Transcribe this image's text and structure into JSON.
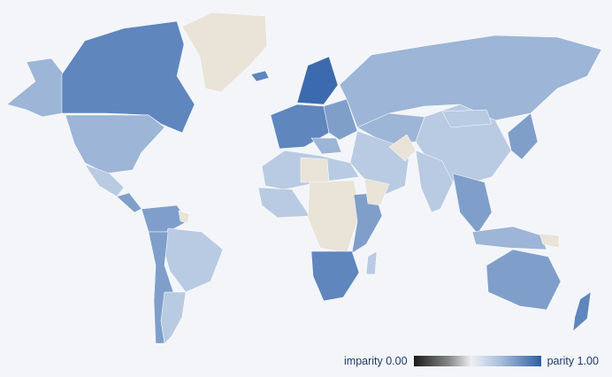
{
  "map": {
    "colors": {
      "background": "#f3f5f9",
      "no_data": "#e9e3d8",
      "light": "#b9cbe2",
      "mid": "#9db5d6",
      "strong": "#7f9fca",
      "deep": "#5f86bd",
      "darkest": "#3c6aae"
    }
  },
  "legend": {
    "min_label": "imparity 0.00",
    "max_label": "parity 1.00",
    "min_color": "#1a1a1a",
    "mid_color": "#eef0f2",
    "max_color": "#2f5fa0"
  }
}
